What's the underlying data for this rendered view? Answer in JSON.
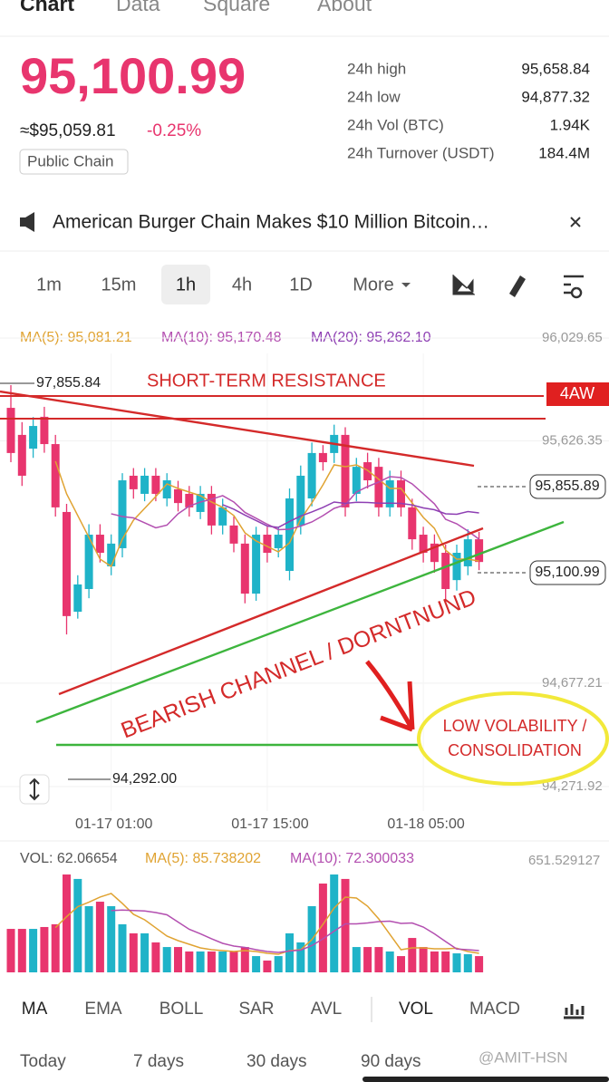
{
  "nav": [
    "Chart",
    "Data",
    "Square",
    "About"
  ],
  "price": {
    "last": "95,100.99",
    "usd": "≈$95,059.81",
    "change": "-0.25%",
    "tag": "Public Chain"
  },
  "stats": [
    [
      "24h high",
      "95,658.84"
    ],
    [
      "24h low",
      "94,877.32"
    ],
    [
      "24h Vol (BTC)",
      "1.94K"
    ],
    [
      "24h Turnover (USDT)",
      "184.4M"
    ]
  ],
  "news": "American Burger Chain Makes $10 Million Bitcoin…",
  "timeframes": [
    "1m",
    "15m",
    "1h",
    "4h",
    "1D",
    "More"
  ],
  "ma_header": [
    "MA(5): 95,081.21",
    "MA(10): 95,170.48",
    "MA(20): 95,262.10"
  ],
  "chart_data": {
    "type": "candlestick",
    "ylim": [
      94271.92,
      96029.65
    ],
    "yticks": [
      {
        "value": 96029.65,
        "label": "96,029.65"
      },
      {
        "value": 95626.35,
        "label": "95,626.35"
      },
      {
        "value": 94677.21,
        "label": "94,677.21"
      },
      {
        "value": 94271.92,
        "label": "94,271.92"
      }
    ],
    "categories": [
      null,
      null,
      null,
      null,
      null,
      null,
      null,
      null,
      null,
      "01-17 01:00",
      null,
      null,
      null,
      null,
      null,
      null,
      null,
      null,
      null,
      null,
      null,
      null,
      null,
      "01-17 15:00",
      null,
      null,
      null,
      null,
      null,
      null,
      null,
      null,
      null,
      null,
      null,
      null,
      null,
      "01-18 05:00",
      null,
      null,
      null,
      null,
      null
    ],
    "up_color": "#1fb3c8",
    "down_color": "#e8356e",
    "open": [
      95756,
      95650,
      95596,
      95721,
      95614,
      95348,
      94957,
      95046,
      95259,
      95135,
      95206,
      95490,
      95419,
      95490,
      95401,
      95437,
      95419,
      95348,
      95419,
      95295,
      95295,
      95224,
      95028,
      95259,
      95206,
      95117,
      95295,
      95401,
      95579,
      95579,
      95650,
      95419,
      95543,
      95525,
      95366,
      95472,
      95366,
      95259,
      95224,
      95188,
      95081,
      95135,
      95241
    ],
    "high": [
      95845,
      95700,
      95720,
      95760,
      95650,
      95380,
      95100,
      95300,
      95300,
      95260,
      95500,
      95520,
      95520,
      95520,
      95500,
      95470,
      95450,
      95450,
      95450,
      95400,
      95330,
      95260,
      95290,
      95290,
      95290,
      95440,
      95530,
      95620,
      95610,
      95690,
      95680,
      95560,
      95580,
      95560,
      95510,
      95510,
      95400,
      95290,
      95260,
      95220,
      95220,
      95280,
      95270
    ],
    "low": [
      95543,
      95450,
      95560,
      95580,
      95330,
      94868,
      94930,
      95010,
      95150,
      95100,
      95170,
      95400,
      95390,
      95390,
      95370,
      95350,
      95330,
      95320,
      95260,
      95260,
      95190,
      94990,
      95000,
      95150,
      95170,
      95080,
      95260,
      95370,
      95510,
      95540,
      95330,
      95390,
      95440,
      95330,
      95330,
      95330,
      95200,
      95150,
      95110,
      94990,
      95040,
      95100,
      95120
    ],
    "close": [
      95579,
      95490,
      95685,
      95614,
      95366,
      94940,
      95064,
      95259,
      95188,
      95224,
      95472,
      95437,
      95490,
      95419,
      95472,
      95383,
      95366,
      95419,
      95295,
      95366,
      95224,
      95028,
      95259,
      95188,
      95259,
      95401,
      95490,
      95579,
      95543,
      95650,
      95366,
      95525,
      95472,
      95366,
      95472,
      95366,
      95241,
      95188,
      95152,
      95046,
      95188,
      95241,
      95152
    ],
    "volume": [
      254,
      254,
      254,
      265,
      281,
      572,
      546,
      387,
      413,
      387,
      281,
      228,
      228,
      175,
      148,
      148,
      122,
      122,
      122,
      122,
      122,
      148,
      95,
      69,
      95,
      228,
      175,
      387,
      519,
      572,
      546,
      148,
      148,
      148,
      122,
      95,
      201,
      148,
      122,
      122,
      111,
      106,
      95
    ],
    "vol_ylim": [
      0,
      651.529127
    ],
    "vol_yticks": [
      651.529127
    ],
    "price_tags": [
      "95,855.89",
      "95,100.99"
    ],
    "level_labels": [
      "97,855.84",
      "94,292.00"
    ]
  },
  "annotations": {
    "resistance": "SHORT-TERM RESISTANCE",
    "badge": "4AW",
    "channel": "BEARISH CHANNEL / DORNTNUND",
    "note": [
      "LOW VOLABILITY /",
      "CONSOLIDATION"
    ]
  },
  "vol_header": [
    "VOL: 62.06654",
    "MA(5): 85.738202",
    "MA(10): 72.300033"
  ],
  "indicators": [
    "MA",
    "EMA",
    "BOLL",
    "SAR",
    "AVL",
    "VOL",
    "MACD"
  ],
  "periods": [
    "Today",
    "7 days",
    "30 days",
    "90 days"
  ],
  "watermark": "@AMIT-HSN"
}
